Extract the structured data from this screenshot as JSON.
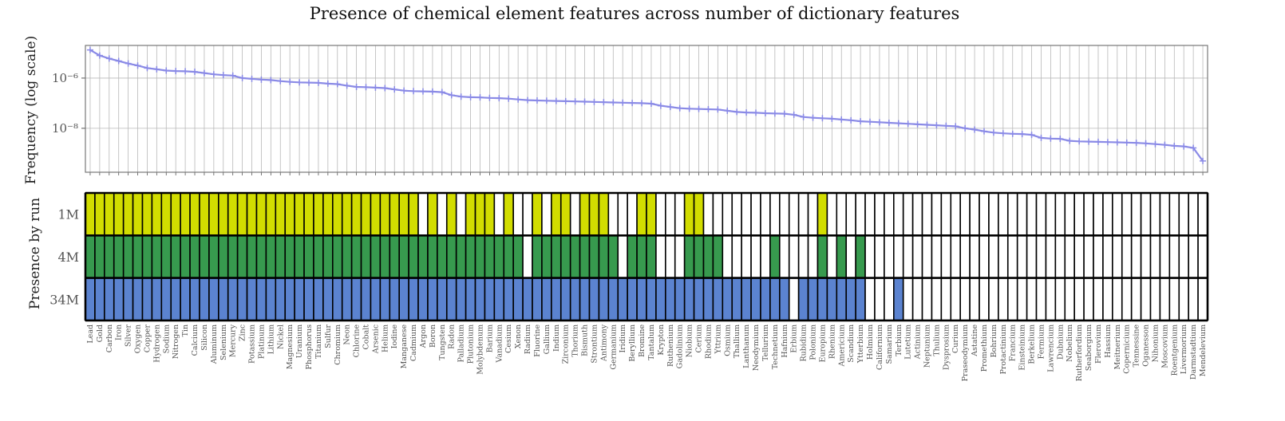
{
  "chart_data": {
    "type": "line",
    "title": "Presence of chemical element features across number of dictionary features",
    "ylabel_top": "Frequency (log scale)",
    "yscale": "log",
    "ylim_log10": [
      -9.75,
      -4.7
    ],
    "ytick_labels": [
      {
        "exp": -6,
        "label": "10⁻⁶"
      },
      {
        "exp": -8,
        "label": "10⁻⁸"
      }
    ],
    "grid": true,
    "ylabel_bottom": "Presence by run",
    "runs": [
      "1M",
      "4M",
      "34M"
    ],
    "run_colors": [
      "#d2dd00",
      "#379a4e",
      "#5b83d0"
    ],
    "line_color": "#8a8ae6",
    "categories": [
      "Lead",
      "Gold",
      "Carbon",
      "Iron",
      "Silver",
      "Oxygen",
      "Copper",
      "Hydrogen",
      "Sodium",
      "Nitrogen",
      "Tin",
      "Calcium",
      "Silicon",
      "Aluminum",
      "Selenium",
      "Mercury",
      "Zinc",
      "Potassium",
      "Platinum",
      "Lithium",
      "Nickel",
      "Magnesium",
      "Uranium",
      "Phosphorus",
      "Titanium",
      "Sulfur",
      "Chromium",
      "Neon",
      "Chlorine",
      "Cobalt",
      "Arsenic",
      "Helium",
      "Iodine",
      "Manganese",
      "Cadmium",
      "Argon",
      "Boron",
      "Tungsten",
      "Radon",
      "Palladium",
      "Plutonium",
      "Molybdenum",
      "Barium",
      "Vanadium",
      "Cesium",
      "Xenon",
      "Radium",
      "Fluorine",
      "Gallium",
      "Indium",
      "Zirconium",
      "Thorium",
      "Bismuth",
      "Strontium",
      "Antimony",
      "Germanium",
      "Iridium",
      "Beryllium",
      "Bromine",
      "Tantalum",
      "Krypton",
      "Ruthenium",
      "Gadolinium",
      "Niobium",
      "Cerium",
      "Rhodium",
      "Yttrium",
      "Osmium",
      "Thallium",
      "Lanthanum",
      "Neodymium",
      "Tellurium",
      "Technetium",
      "Hafnium",
      "Erbium",
      "Rubidium",
      "Polonium",
      "Europium",
      "Rhenium",
      "Americium",
      "Scandium",
      "Ytterbium",
      "Holmium",
      "Californium",
      "Samarium",
      "Terbium",
      "Lutetium",
      "Actinium",
      "Neptunium",
      "Thulium",
      "Dysprosium",
      "Curium",
      "Praseodymium",
      "Astatine",
      "Promethium",
      "Bohrium",
      "Protactinium",
      "Francium",
      "Einsteinium",
      "Berkelium",
      "Fermium",
      "Lawrencium",
      "Dubnium",
      "Nobelium",
      "Rutherfordium",
      "Seaborgium",
      "Flerovium",
      "Hassium",
      "Meitnerium",
      "Copernicium",
      "Tennessine",
      "Oganesson",
      "Nihonium",
      "Moscovium",
      "Roentgenium",
      "Livermorium",
      "Darmstadtium",
      "Mendelevium"
    ],
    "log10_frequency": [
      -4.88,
      -5.1,
      -5.22,
      -5.32,
      -5.42,
      -5.5,
      -5.6,
      -5.65,
      -5.7,
      -5.72,
      -5.73,
      -5.75,
      -5.8,
      -5.85,
      -5.88,
      -5.9,
      -6.0,
      -6.03,
      -6.06,
      -6.08,
      -6.12,
      -6.15,
      -6.17,
      -6.18,
      -6.19,
      -6.22,
      -6.24,
      -6.3,
      -6.35,
      -6.36,
      -6.38,
      -6.4,
      -6.45,
      -6.5,
      -6.52,
      -6.53,
      -6.54,
      -6.56,
      -6.68,
      -6.74,
      -6.76,
      -6.77,
      -6.79,
      -6.8,
      -6.82,
      -6.85,
      -6.88,
      -6.89,
      -6.9,
      -6.91,
      -6.92,
      -6.93,
      -6.94,
      -6.95,
      -6.96,
      -6.97,
      -6.98,
      -6.99,
      -7.0,
      -7.02,
      -7.1,
      -7.15,
      -7.2,
      -7.22,
      -7.23,
      -7.24,
      -7.25,
      -7.3,
      -7.35,
      -7.37,
      -7.38,
      -7.4,
      -7.41,
      -7.42,
      -7.46,
      -7.55,
      -7.58,
      -7.6,
      -7.62,
      -7.65,
      -7.68,
      -7.72,
      -7.74,
      -7.76,
      -7.78,
      -7.8,
      -7.82,
      -7.84,
      -7.86,
      -7.88,
      -7.9,
      -7.92,
      -8.0,
      -8.05,
      -8.12,
      -8.17,
      -8.2,
      -8.22,
      -8.23,
      -8.26,
      -8.38,
      -8.41,
      -8.42,
      -8.5,
      -8.52,
      -8.53,
      -8.54,
      -8.55,
      -8.56,
      -8.57,
      -8.58,
      -8.6,
      -8.63,
      -8.66,
      -8.7,
      -8.72,
      -8.78,
      -9.3
    ],
    "presence": [
      [
        1,
        1,
        1,
        1,
        1,
        1,
        1,
        1,
        1,
        1,
        1,
        1,
        1,
        1,
        1,
        1,
        1,
        1,
        1,
        1,
        1,
        1,
        1,
        1,
        1,
        1,
        1,
        1,
        1,
        1,
        1,
        1,
        1,
        1,
        1,
        0,
        1,
        0,
        1,
        0,
        1,
        1,
        1,
        0,
        1,
        0,
        0,
        1,
        0,
        1,
        1,
        0,
        1,
        1,
        1,
        0,
        0,
        0,
        1,
        1,
        0,
        0,
        0,
        1,
        1,
        0,
        0,
        0,
        0,
        0,
        0,
        0,
        0,
        0,
        0,
        0,
        0,
        1,
        0,
        0,
        0,
        0,
        0,
        0,
        0,
        0,
        0,
        0,
        0,
        0,
        0,
        0,
        0,
        0,
        0,
        0,
        0,
        0,
        0,
        0,
        0,
        0,
        0,
        0,
        0,
        0,
        0,
        0,
        0,
        0,
        0,
        0,
        0,
        0,
        0,
        0,
        0,
        0
      ],
      [
        1,
        1,
        1,
        1,
        1,
        1,
        1,
        1,
        1,
        1,
        1,
        1,
        1,
        1,
        1,
        1,
        1,
        1,
        1,
        1,
        1,
        1,
        1,
        1,
        1,
        1,
        1,
        1,
        1,
        1,
        1,
        1,
        1,
        1,
        1,
        1,
        1,
        1,
        1,
        1,
        1,
        1,
        1,
        1,
        1,
        1,
        0,
        1,
        1,
        1,
        1,
        1,
        1,
        1,
        1,
        1,
        0,
        1,
        1,
        1,
        0,
        0,
        0,
        1,
        1,
        1,
        1,
        0,
        0,
        0,
        0,
        0,
        1,
        0,
        0,
        0,
        0,
        1,
        0,
        1,
        0,
        1,
        0,
        0,
        0,
        0,
        0,
        0,
        0,
        0,
        0,
        0,
        0,
        0,
        0,
        0,
        0,
        0,
        0,
        0,
        0,
        0,
        0,
        0,
        0,
        0,
        0,
        0,
        0,
        0,
        0,
        0,
        0,
        0,
        0,
        0,
        0,
        0
      ],
      [
        1,
        1,
        1,
        1,
        1,
        1,
        1,
        1,
        1,
        1,
        1,
        1,
        1,
        1,
        1,
        1,
        1,
        1,
        1,
        1,
        1,
        1,
        1,
        1,
        1,
        1,
        1,
        1,
        1,
        1,
        1,
        1,
        1,
        1,
        1,
        1,
        1,
        1,
        1,
        1,
        1,
        1,
        1,
        1,
        1,
        1,
        1,
        1,
        1,
        1,
        1,
        1,
        1,
        1,
        1,
        1,
        1,
        1,
        1,
        1,
        1,
        1,
        1,
        1,
        1,
        1,
        1,
        1,
        1,
        1,
        1,
        1,
        1,
        1,
        0,
        1,
        1,
        1,
        1,
        1,
        1,
        1,
        0,
        0,
        0,
        1,
        0,
        0,
        0,
        0,
        0,
        0,
        0,
        0,
        0,
        0,
        0,
        0,
        0,
        0,
        0,
        0,
        0,
        0,
        0,
        0,
        0,
        0,
        0,
        0,
        0,
        0,
        0,
        0,
        0,
        0,
        0,
        0
      ]
    ]
  }
}
